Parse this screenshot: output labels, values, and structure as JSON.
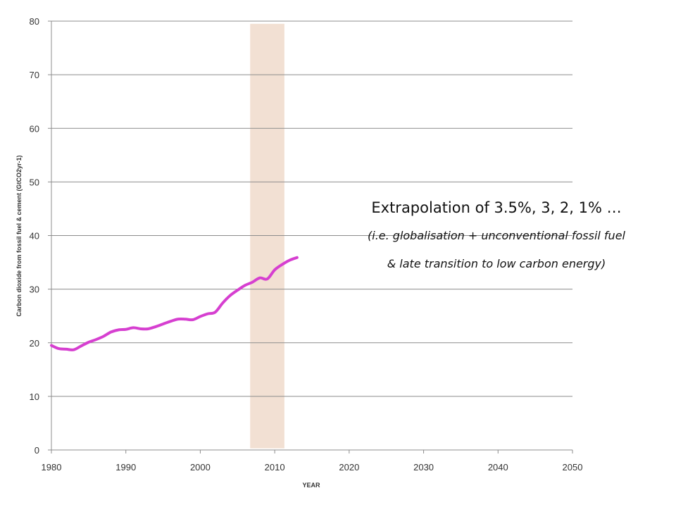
{
  "chart_data": {
    "type": "line",
    "xlabel": "YEAR",
    "ylabel": "Carbon dioxide from fossil fuel & cement (GtCO2yr-1)",
    "xlim": [
      1980,
      2050
    ],
    "ylim": [
      0,
      80
    ],
    "xticks": [
      1980,
      1990,
      2000,
      2010,
      2020,
      2030,
      2040,
      2050
    ],
    "yticks": [
      0,
      10,
      20,
      30,
      40,
      50,
      60,
      70,
      80
    ],
    "grid": "horizontal",
    "highlight_band": {
      "x": [
        2006.7,
        2011.3
      ],
      "y": [
        0.3,
        79.5
      ],
      "color": "#f2e0d3"
    },
    "series": [
      {
        "color": "#d63fd0",
        "x": [
          1980,
          1981,
          1982,
          1983,
          1984,
          1985,
          1986,
          1987,
          1988,
          1989,
          1990,
          1991,
          1992,
          1993,
          1994,
          1995,
          1996,
          1997,
          1998,
          1999,
          2000,
          2001,
          2002,
          2003,
          2004,
          2005,
          2006,
          2007,
          2008,
          2009,
          2010,
          2011,
          2012,
          2013
        ],
        "y": [
          19.5,
          18.9,
          18.8,
          18.7,
          19.4,
          20.1,
          20.6,
          21.2,
          22.0,
          22.4,
          22.5,
          22.8,
          22.6,
          22.6,
          23.0,
          23.5,
          24.0,
          24.4,
          24.4,
          24.3,
          24.9,
          25.4,
          25.7,
          27.4,
          28.8,
          29.8,
          30.7,
          31.3,
          32.1,
          31.9,
          33.6,
          34.6,
          35.4,
          35.9
        ]
      }
    ]
  },
  "annotation": {
    "main": "Extrapolation of 3.5%, 3, 2, 1% …",
    "line1": "(i.e. globalisation + unconventional fossil fuel",
    "line2": "& late transition to low carbon energy)"
  }
}
